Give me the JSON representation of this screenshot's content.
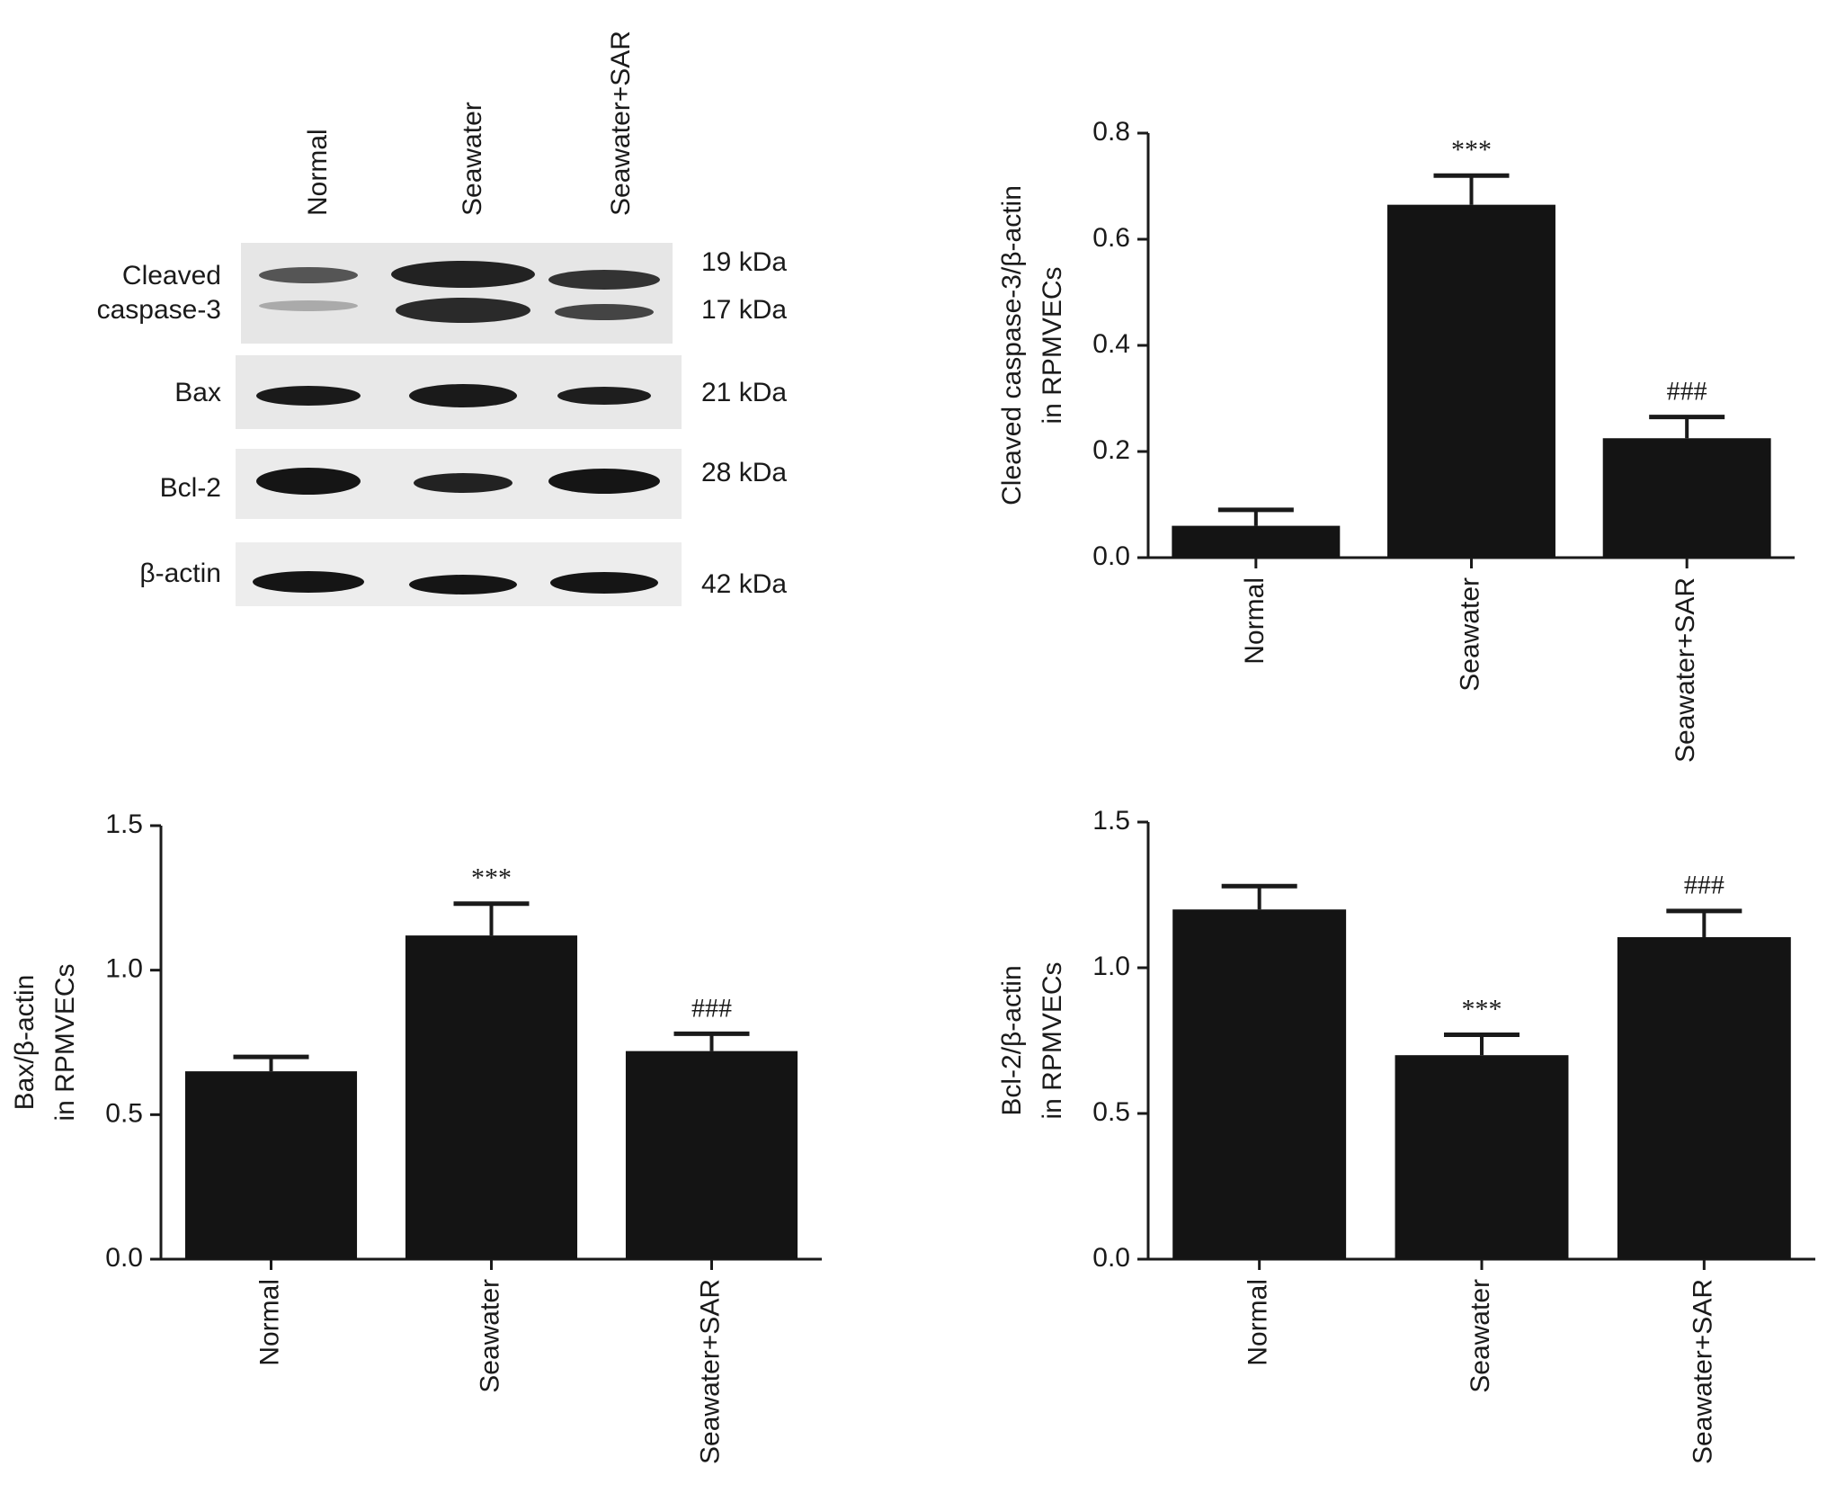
{
  "blot": {
    "lanes": [
      "Normal",
      "Seawater",
      "Seawater+SAR"
    ],
    "rows": [
      {
        "name": [
          "Cleaved",
          "caspase-3"
        ],
        "sizes": [
          "19 kDa",
          "17 kDa"
        ]
      },
      {
        "name": [
          "Bax"
        ],
        "sizes": [
          "21 kDa"
        ]
      },
      {
        "name": [
          "Bcl-2"
        ],
        "sizes": [
          "28 kDa"
        ]
      },
      {
        "name": [
          "β-actin"
        ],
        "sizes": [
          "42 kDa"
        ]
      }
    ]
  },
  "chart_data": [
    {
      "type": "bar",
      "ylabel": [
        "Cleaved caspase-3/β-actin",
        "in RPMVECs"
      ],
      "categories": [
        "Normal",
        "Seawater",
        "Seawater+SAR"
      ],
      "values": [
        0.06,
        0.665,
        0.225
      ],
      "errors": [
        0.03,
        0.055,
        0.04
      ],
      "annotations": [
        null,
        "***",
        "###"
      ],
      "color": "#141414",
      "ylim": [
        0,
        0.8
      ],
      "yticks": [
        {
          "value": 0,
          "label": "0.0"
        },
        0.2,
        0.4,
        0.6,
        0.8
      ]
    },
    {
      "type": "bar",
      "ylabel": [
        "Bax/β-actin",
        "in RPMVECs"
      ],
      "categories": [
        "Normal",
        "Seawater",
        "Seawater+SAR"
      ],
      "values": [
        0.65,
        1.12,
        0.72
      ],
      "errors": [
        0.05,
        0.11,
        0.06
      ],
      "annotations": [
        null,
        "***",
        "###"
      ],
      "color": "#141414",
      "ylim": [
        0,
        1.5
      ],
      "yticks": [
        {
          "value": 0,
          "label": "0.0"
        },
        0.5,
        {
          "value": 1,
          "label": "1.0"
        },
        1.5
      ]
    },
    {
      "type": "bar",
      "ylabel": [
        "Bcl-2/β-actin",
        "in RPMVECs"
      ],
      "categories": [
        "Normal",
        "Seawater",
        "Seawater+SAR"
      ],
      "values": [
        1.2,
        0.7,
        1.105
      ],
      "errors": [
        0.08,
        0.07,
        0.09
      ],
      "annotations": [
        null,
        "***",
        "###"
      ],
      "color": "#141414",
      "ylim": [
        0,
        1.5
      ],
      "yticks": [
        {
          "value": 0,
          "label": "0.0"
        },
        0.5,
        {
          "value": 1,
          "label": "1.0"
        },
        1.5
      ]
    }
  ]
}
